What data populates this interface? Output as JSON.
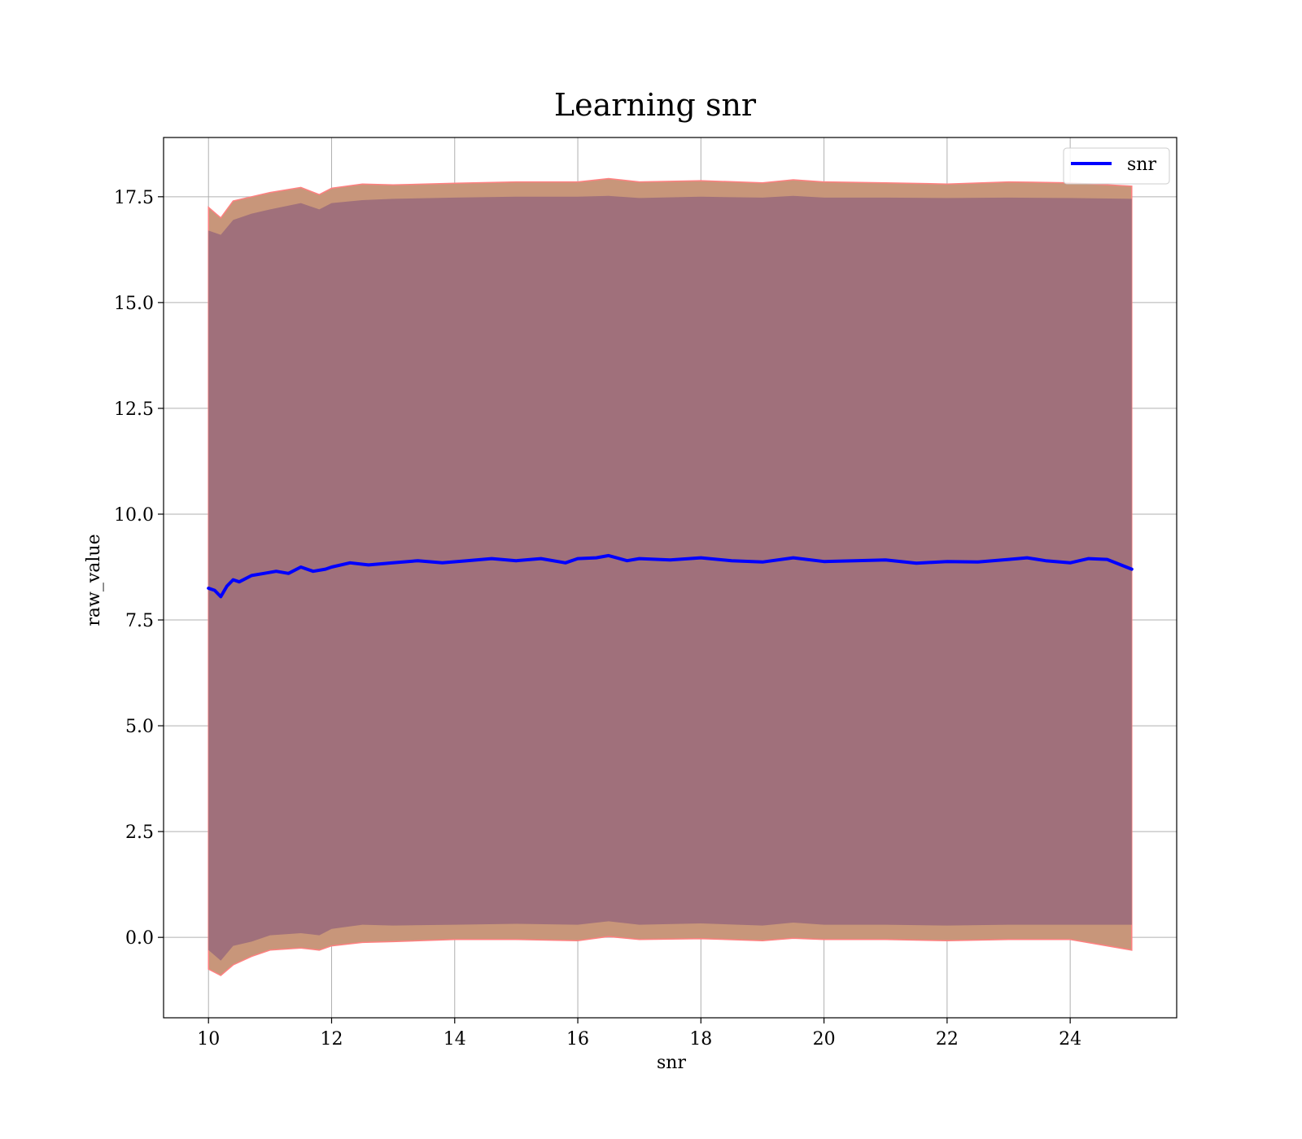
{
  "chart_data": {
    "type": "line",
    "title": "Learning snr",
    "xlabel": "snr",
    "ylabel": "raw_value",
    "xlim": [
      9.27,
      25.73
    ],
    "ylim": [
      -1.9,
      18.9
    ],
    "xticks": [
      10,
      12,
      14,
      16,
      18,
      20,
      22,
      24
    ],
    "xtick_labels": [
      "10",
      "12",
      "14",
      "16",
      "18",
      "20",
      "22",
      "24"
    ],
    "yticks": [
      0.0,
      2.5,
      5.0,
      7.5,
      10.0,
      12.5,
      15.0,
      17.5
    ],
    "ytick_labels": [
      "0.0",
      "2.5",
      "5.0",
      "7.5",
      "10.0",
      "12.5",
      "15.0",
      "17.5"
    ],
    "grid": true,
    "legend": {
      "placement": "top-right",
      "entries": [
        "snr"
      ]
    },
    "colors": {
      "line": "#0000ff",
      "inner_band": "#a0707b",
      "outer_band": "#c8967a",
      "outer_band_edge": "#ff8080",
      "grid": "#b0b0b0"
    },
    "series": [
      {
        "name": "snr",
        "x": [
          10.0,
          10.1,
          10.2,
          10.3,
          10.4,
          10.5,
          10.7,
          10.9,
          11.1,
          11.3,
          11.5,
          11.7,
          11.9,
          12.0,
          12.3,
          12.6,
          13.0,
          13.4,
          13.8,
          14.2,
          14.6,
          15.0,
          15.4,
          15.8,
          16.0,
          16.3,
          16.5,
          16.8,
          17.0,
          17.5,
          18.0,
          18.5,
          19.0,
          19.5,
          20.0,
          20.5,
          21.0,
          21.5,
          22.0,
          22.5,
          23.0,
          23.3,
          23.6,
          24.0,
          24.3,
          24.6,
          25.0
        ],
        "y": [
          8.25,
          8.2,
          8.05,
          8.3,
          8.45,
          8.4,
          8.55,
          8.6,
          8.65,
          8.6,
          8.75,
          8.65,
          8.7,
          8.75,
          8.85,
          8.8,
          8.85,
          8.9,
          8.85,
          8.9,
          8.95,
          8.9,
          8.95,
          8.85,
          8.95,
          8.97,
          9.02,
          8.9,
          8.95,
          8.92,
          8.97,
          8.9,
          8.87,
          8.97,
          8.88,
          8.9,
          8.92,
          8.84,
          8.88,
          8.87,
          8.93,
          8.97,
          8.9,
          8.85,
          8.95,
          8.93,
          8.7
        ]
      }
    ],
    "bands": [
      {
        "role": "outer",
        "x": [
          10.0,
          10.2,
          10.4,
          10.7,
          11.0,
          11.5,
          11.8,
          12.0,
          12.5,
          13.0,
          14.0,
          15.0,
          16.0,
          16.5,
          17.0,
          18.0,
          19.0,
          19.5,
          20.0,
          21.0,
          22.0,
          23.0,
          24.0,
          25.0
        ],
        "upper": [
          17.25,
          17.0,
          17.4,
          17.5,
          17.6,
          17.72,
          17.55,
          17.7,
          17.8,
          17.78,
          17.82,
          17.85,
          17.85,
          17.93,
          17.85,
          17.88,
          17.83,
          17.9,
          17.85,
          17.83,
          17.8,
          17.85,
          17.83,
          17.75
        ],
        "lower": [
          -0.75,
          -0.9,
          -0.65,
          -0.45,
          -0.3,
          -0.25,
          -0.3,
          -0.2,
          -0.12,
          -0.1,
          -0.05,
          -0.05,
          -0.08,
          0.02,
          -0.05,
          -0.03,
          -0.08,
          -0.02,
          -0.05,
          -0.05,
          -0.08,
          -0.05,
          -0.05,
          -0.3
        ]
      },
      {
        "role": "inner",
        "x": [
          10.0,
          10.2,
          10.4,
          10.7,
          11.0,
          11.5,
          11.8,
          12.0,
          12.5,
          13.0,
          14.0,
          15.0,
          16.0,
          16.5,
          17.0,
          18.0,
          19.0,
          19.5,
          20.0,
          21.0,
          22.0,
          23.0,
          24.0,
          25.0
        ],
        "upper": [
          16.7,
          16.6,
          16.95,
          17.1,
          17.2,
          17.35,
          17.2,
          17.35,
          17.42,
          17.45,
          17.48,
          17.5,
          17.5,
          17.52,
          17.47,
          17.5,
          17.48,
          17.52,
          17.48,
          17.48,
          17.47,
          17.48,
          17.47,
          17.45
        ],
        "lower": [
          -0.3,
          -0.55,
          -0.2,
          -0.1,
          0.05,
          0.1,
          0.05,
          0.2,
          0.3,
          0.28,
          0.3,
          0.32,
          0.3,
          0.38,
          0.3,
          0.33,
          0.28,
          0.35,
          0.3,
          0.3,
          0.28,
          0.3,
          0.3,
          0.3
        ]
      }
    ]
  }
}
